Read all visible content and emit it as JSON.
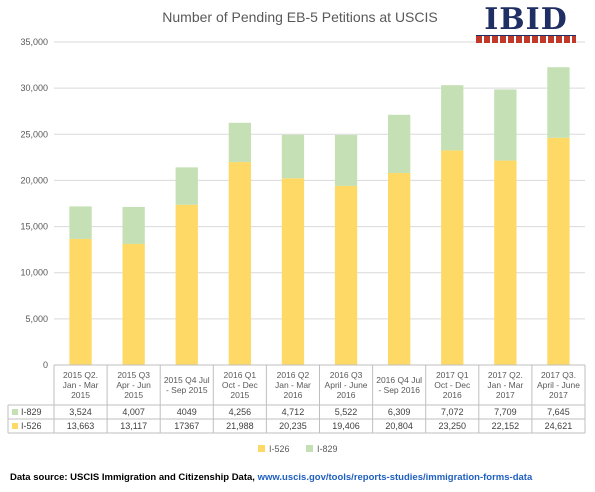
{
  "logo": {
    "text": "IBID"
  },
  "footer": {
    "source_label": "Data source: USCIS Immigration and Citizenship Data,",
    "source_url": "www.uscis.gov/tools/reports-studies/immigration-forms-data"
  },
  "chart_data": {
    "type": "bar",
    "stacked": true,
    "title": "Number of Pending EB-5 Petitions at USCIS",
    "categories": [
      [
        "2015 Q2.",
        "Jan - Mar",
        "2015"
      ],
      [
        "2015 Q3",
        "Apr - Jun",
        "2015"
      ],
      [
        "2015 Q4 Jul",
        "- Sep 2015"
      ],
      [
        "2016 Q1",
        "Oct - Dec",
        "2015"
      ],
      [
        "2016 Q2",
        "Jan - Mar",
        "2016"
      ],
      [
        "2016 Q3",
        "April - June",
        "2016"
      ],
      [
        "2016 Q4 Jul",
        "- Sep 2016"
      ],
      [
        "2017 Q1",
        "Oct - Dec",
        "2016"
      ],
      [
        "2017 Q2.",
        "Jan - Mar",
        "2017"
      ],
      [
        "2017 Q3.",
        "April - June",
        "2017"
      ]
    ],
    "series": [
      {
        "name": "I-526",
        "color": "#ffd966",
        "values": [
          13663,
          13117,
          17367,
          21988,
          20235,
          19406,
          20804,
          23250,
          22152,
          24621
        ],
        "labels": [
          "13,663",
          "13,117",
          "17367",
          "21,988",
          "20,235",
          "19,406",
          "20,804",
          "23,250",
          "22,152",
          "24,621"
        ]
      },
      {
        "name": "I-829",
        "color": "#c5e0b4",
        "values": [
          3524,
          4007,
          4049,
          4256,
          4712,
          5522,
          6309,
          7072,
          7709,
          7645
        ],
        "labels": [
          "3,524",
          "4,007",
          "4049",
          "4,256",
          "4,712",
          "5,522",
          "6,309",
          "7,072",
          "7,709",
          "7,645"
        ]
      }
    ],
    "ylim": [
      0,
      35000
    ],
    "yticks": [
      0,
      5000,
      10000,
      15000,
      20000,
      25000,
      30000,
      35000
    ],
    "ytick_labels": [
      "0",
      "5,000",
      "10,000",
      "15,000",
      "20,000",
      "25,000",
      "30,000",
      "35,000"
    ],
    "grid": true,
    "legend": "bottom",
    "data_table": true
  }
}
